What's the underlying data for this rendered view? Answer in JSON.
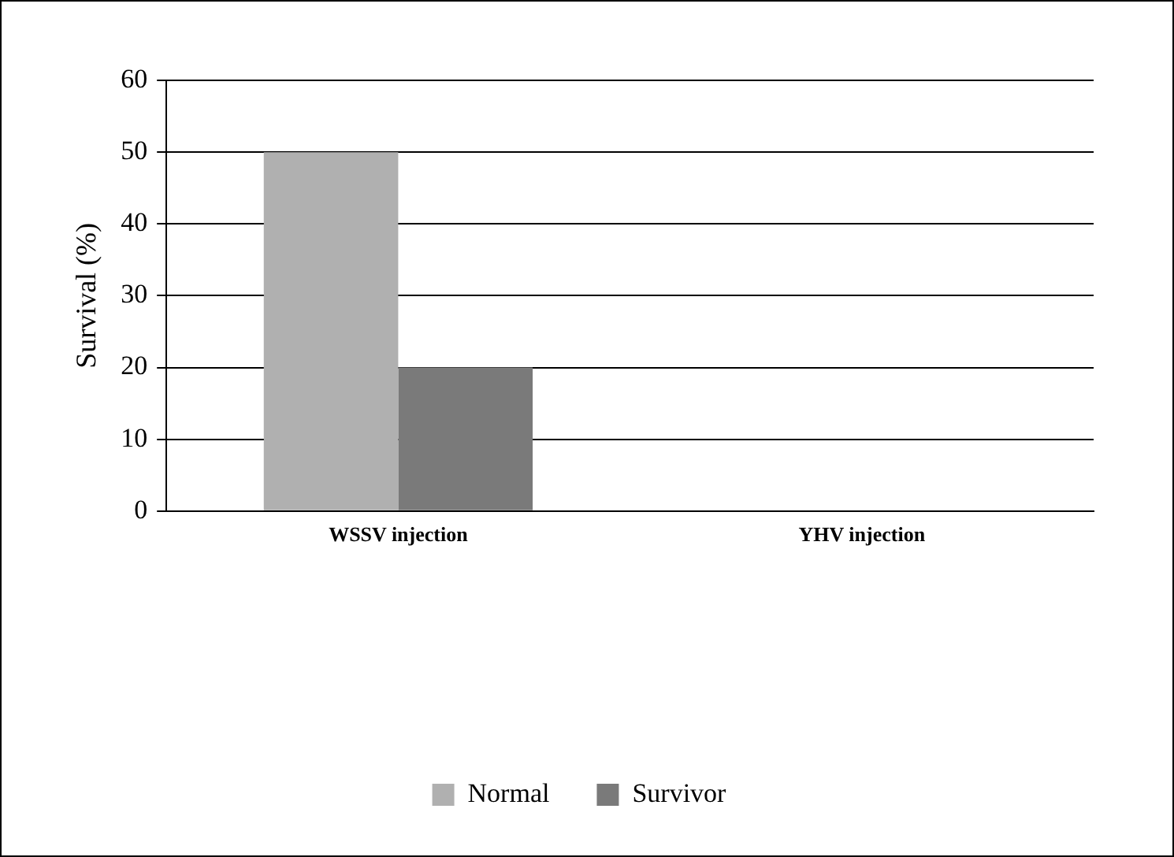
{
  "chart_data": {
    "type": "bar",
    "ylabel": "Survival (%)",
    "categories": [
      "WSSV injection",
      "YHV injection"
    ],
    "series": [
      {
        "name": "Normal",
        "color": "#b0b0b0",
        "values": [
          50,
          0
        ]
      },
      {
        "name": "Survivor",
        "color": "#7a7a7a",
        "values": [
          20,
          0
        ]
      }
    ],
    "ylim": [
      0,
      60
    ],
    "yticks": [
      0,
      10,
      20,
      30,
      40,
      50,
      60
    ],
    "grid": "y",
    "legend": "bottom"
  }
}
